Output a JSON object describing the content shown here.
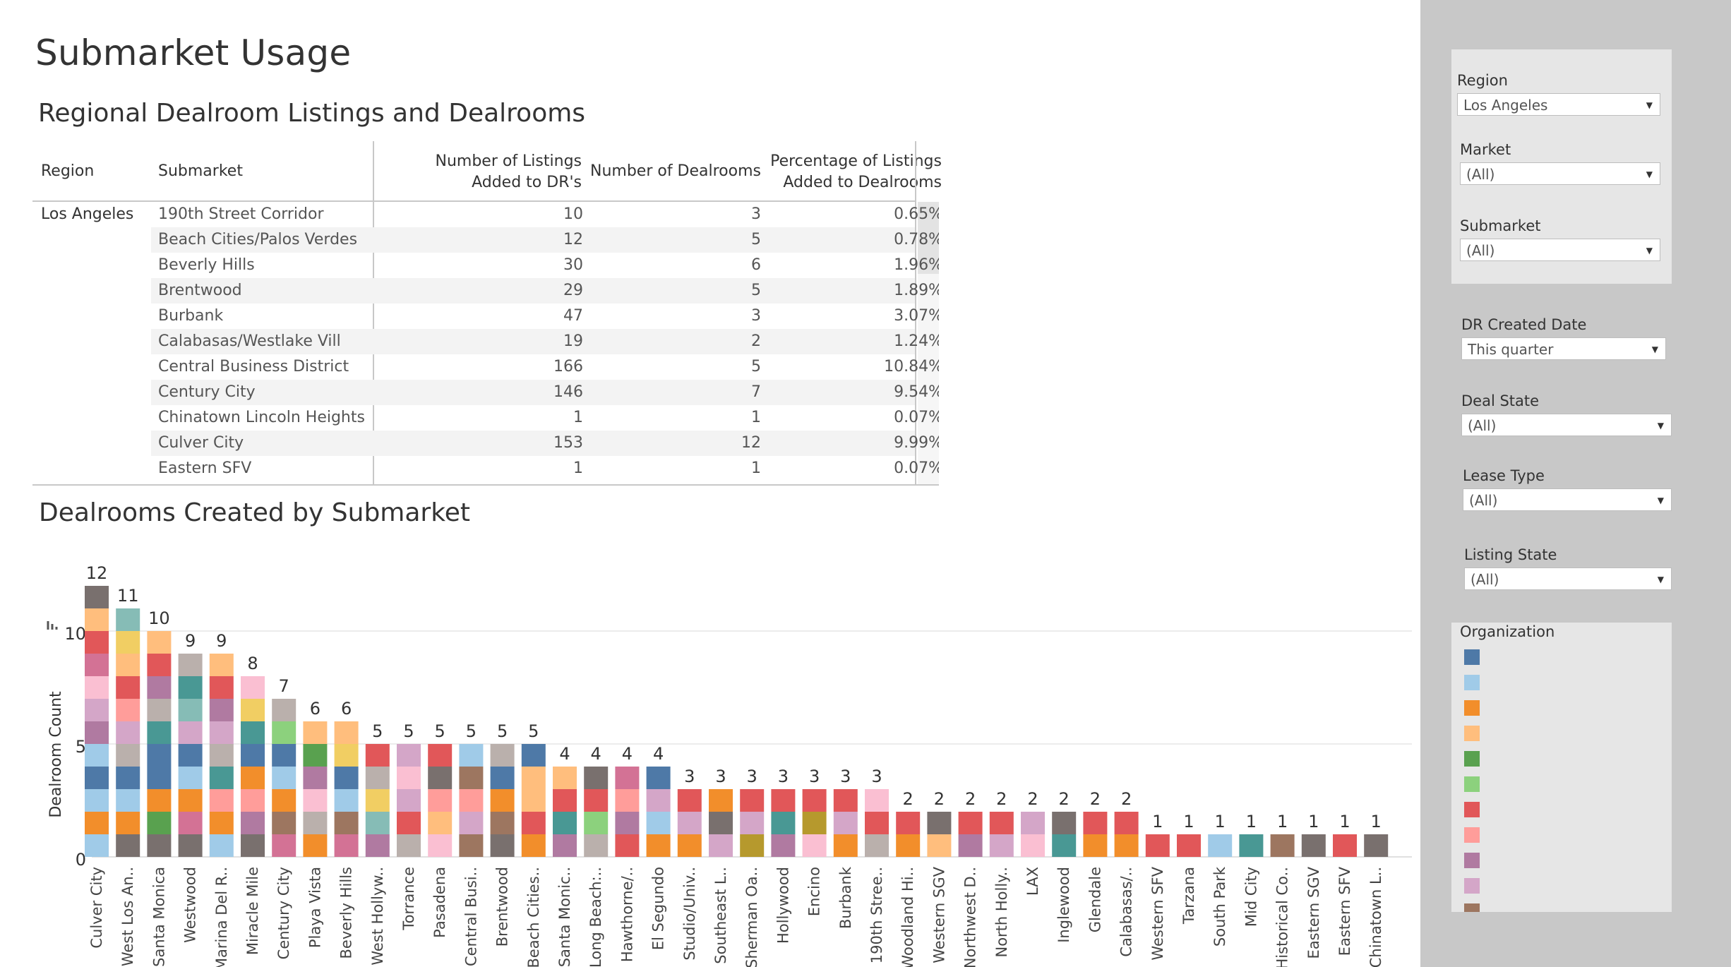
{
  "page": {
    "title": "Submarket Usage"
  },
  "table": {
    "title": "Regional Dealroom Listings and Dealrooms",
    "headers": {
      "region": "Region",
      "submarket": "Submarket",
      "listings_line1": "Number of Listings",
      "listings_line2": "Added to DR's",
      "dealrooms": "Number of Dealrooms",
      "pct_line1": "Percentage of Listings",
      "pct_line2": "Added to Dealrooms"
    },
    "region_value": "Los Angeles",
    "rows": [
      {
        "submarket": "190th Street Corridor",
        "listings": "10",
        "dealrooms": "3",
        "pct": "0.65%"
      },
      {
        "submarket": "Beach Cities/Palos Verdes",
        "listings": "12",
        "dealrooms": "5",
        "pct": "0.78%"
      },
      {
        "submarket": "Beverly Hills",
        "listings": "30",
        "dealrooms": "6",
        "pct": "1.96%"
      },
      {
        "submarket": "Brentwood",
        "listings": "29",
        "dealrooms": "5",
        "pct": "1.89%"
      },
      {
        "submarket": "Burbank",
        "listings": "47",
        "dealrooms": "3",
        "pct": "3.07%"
      },
      {
        "submarket": "Calabasas/Westlake Vill",
        "listings": "19",
        "dealrooms": "2",
        "pct": "1.24%"
      },
      {
        "submarket": "Central Business District",
        "listings": "166",
        "dealrooms": "5",
        "pct": "10.84%"
      },
      {
        "submarket": "Century City",
        "listings": "146",
        "dealrooms": "7",
        "pct": "9.54%"
      },
      {
        "submarket": "Chinatown Lincoln Heights",
        "listings": "1",
        "dealrooms": "1",
        "pct": "0.07%"
      },
      {
        "submarket": "Culver City",
        "listings": "153",
        "dealrooms": "12",
        "pct": "9.99%"
      },
      {
        "submarket": "Eastern SFV",
        "listings": "1",
        "dealrooms": "1",
        "pct": "0.07%"
      }
    ]
  },
  "chart_data": {
    "type": "bar",
    "title": "Dealrooms Created by Submarket",
    "ylabel": "Dealroom Count",
    "xlabel": "",
    "ylim": [
      0,
      12
    ],
    "yticks": [
      0,
      5,
      10
    ],
    "stacked": true,
    "categories": [
      "Culver City",
      "West Los An..",
      "Santa Monica",
      "Westwood",
      "Marina Del R..",
      "Miracle Mile",
      "Century City",
      "Playa Vista",
      "Beverly Hills",
      "West Hollyw..",
      "Torrance",
      "Pasadena",
      "Central Busi..",
      "Brentwood",
      "Beach Cities..",
      "Santa Monic..",
      "Long Beach:..",
      "Hawthorne/..",
      "El Segundo",
      "Studio/Univ..",
      "Southeast L..",
      "Sherman Oa..",
      "Hollywood",
      "Encino",
      "Burbank",
      "190th Stree..",
      "Woodland Hi..",
      "Western SGV",
      "Northwest D..",
      "North Holly..",
      "LAX",
      "Inglewood",
      "Glendale",
      "Calabasas/..",
      "Western SFV",
      "Tarzana",
      "South Park",
      "Mid City",
      "Historical Co..",
      "Eastern SGV",
      "Eastern SFV",
      "Chinatown L.."
    ],
    "values": [
      12,
      11,
      10,
      9,
      9,
      8,
      7,
      6,
      6,
      5,
      5,
      5,
      5,
      5,
      5,
      4,
      4,
      4,
      4,
      3,
      3,
      3,
      3,
      3,
      3,
      3,
      2,
      2,
      2,
      2,
      2,
      2,
      2,
      2,
      1,
      1,
      1,
      1,
      1,
      1,
      1,
      1
    ],
    "segment_colors": [
      [
        "#a0cbe8",
        "#f28e2b",
        "#a0cbe8",
        "#4e79a7",
        "#a0cbe8",
        "#b07aa1",
        "#d4a6c8",
        "#fabfd2",
        "#d37295",
        "#e15759",
        "#ffbe7d",
        "#79706e",
        "#b6992d",
        "#8cd17d",
        "#f1ce63",
        "#ff9d9a"
      ],
      [
        "#79706e",
        "#f28e2b",
        "#a0cbe8",
        "#4e79a7",
        "#bab0ac",
        "#d4a6c8",
        "#ff9d9a",
        "#e15759",
        "#ffbe7d",
        "#f1ce63",
        "#86bcb6",
        "#b07aa1"
      ],
      [
        "#79706e",
        "#59a14f",
        "#f28e2b",
        "#4e79a7",
        "#4e79a7",
        "#499894",
        "#bab0ac",
        "#b07aa1",
        "#e15759",
        "#ffbe7d",
        "#ff9d9a"
      ],
      [
        "#79706e",
        "#d37295",
        "#f28e2b",
        "#a0cbe8",
        "#4e79a7",
        "#d4a6c8",
        "#86bcb6",
        "#499894",
        "#bab0ac",
        "#b07aa1",
        "#ffbe7d"
      ],
      [
        "#a0cbe8",
        "#f28e2b",
        "#ff9d9a",
        "#499894",
        "#bab0ac",
        "#d4a6c8",
        "#b07aa1",
        "#e15759",
        "#ffbe7d",
        "#fabfd2"
      ],
      [
        "#79706e",
        "#b07aa1",
        "#ff9d9a",
        "#f28e2b",
        "#4e79a7",
        "#499894",
        "#f1ce63",
        "#fabfd2",
        "#bab0ac"
      ],
      [
        "#d37295",
        "#9d7660",
        "#f28e2b",
        "#a0cbe8",
        "#4e79a7",
        "#8cd17d",
        "#bab0ac",
        "#f28e2b"
      ],
      [
        "#f28e2b",
        "#bab0ac",
        "#fabfd2",
        "#b07aa1",
        "#59a14f",
        "#ffbe7d",
        "#f1ce63"
      ],
      [
        "#d37295",
        "#9d7660",
        "#a0cbe8",
        "#4e79a7",
        "#f1ce63",
        "#ffbe7d",
        "#f1ce63"
      ],
      [
        "#b07aa1",
        "#86bcb6",
        "#f1ce63",
        "#bab0ac",
        "#e15759"
      ],
      [
        "#bab0ac",
        "#e15759",
        "#d4a6c8",
        "#fabfd2",
        "#d4a6c8"
      ],
      [
        "#fabfd2",
        "#ffbe7d",
        "#ff9d9a",
        "#79706e",
        "#e15759"
      ],
      [
        "#9d7660",
        "#d4a6c8",
        "#ff9d9a",
        "#9d7660",
        "#a0cbe8"
      ],
      [
        "#79706e",
        "#9d7660",
        "#f28e2b",
        "#4e79a7",
        "#bab0ac"
      ],
      [
        "#f28e2b",
        "#e15759",
        "#ffbe7d",
        "#ffbe7d",
        "#4e79a7"
      ],
      [
        "#b07aa1",
        "#499894",
        "#e15759",
        "#ffbe7d"
      ],
      [
        "#bab0ac",
        "#8cd17d",
        "#e15759",
        "#79706e"
      ],
      [
        "#e15759",
        "#b07aa1",
        "#ff9d9a",
        "#d37295"
      ],
      [
        "#f28e2b",
        "#a0cbe8",
        "#d4a6c8",
        "#4e79a7"
      ],
      [
        "#f28e2b",
        "#d4a6c8",
        "#e15759"
      ],
      [
        "#d4a6c8",
        "#79706e",
        "#f28e2b"
      ],
      [
        "#b6992d",
        "#d4a6c8",
        "#e15759"
      ],
      [
        "#b07aa1",
        "#499894",
        "#e15759"
      ],
      [
        "#fabfd2",
        "#b6992d",
        "#e15759"
      ],
      [
        "#f28e2b",
        "#d4a6c8",
        "#e15759"
      ],
      [
        "#bab0ac",
        "#e15759",
        "#fabfd2"
      ],
      [
        "#f28e2b",
        "#e15759"
      ],
      [
        "#ffbe7d",
        "#79706e"
      ],
      [
        "#b07aa1",
        "#e15759"
      ],
      [
        "#d4a6c8",
        "#e15759"
      ],
      [
        "#fabfd2",
        "#d4a6c8"
      ],
      [
        "#499894",
        "#79706e"
      ],
      [
        "#f28e2b",
        "#e15759"
      ],
      [
        "#f28e2b",
        "#e15759"
      ],
      [
        "#e15759"
      ],
      [
        "#e15759"
      ],
      [
        "#a0cbe8"
      ],
      [
        "#499894"
      ],
      [
        "#9d7660"
      ],
      [
        "#79706e"
      ],
      [
        "#e15759"
      ],
      [
        "#79706e"
      ]
    ]
  },
  "filters": {
    "region": {
      "label": "Region",
      "value": "Los Angeles"
    },
    "market": {
      "label": "Market",
      "value": "(All)"
    },
    "submarket": {
      "label": "Submarket",
      "value": "(All)"
    },
    "dr_created_date": {
      "label": "DR Created Date",
      "value": "This quarter"
    },
    "deal_state": {
      "label": "Deal State",
      "value": "(All)"
    },
    "lease_type": {
      "label": "Lease Type",
      "value": "(All)"
    },
    "listing_state": {
      "label": "Listing State",
      "value": "(All)"
    }
  },
  "legend": {
    "title": "Organization",
    "colors": [
      "#4e79a7",
      "#a0cbe8",
      "#f28e2b",
      "#ffbe7d",
      "#59a14f",
      "#8cd17d",
      "#e15759",
      "#ff9d9a",
      "#b07aa1",
      "#d4a6c8",
      "#9d7660"
    ]
  }
}
